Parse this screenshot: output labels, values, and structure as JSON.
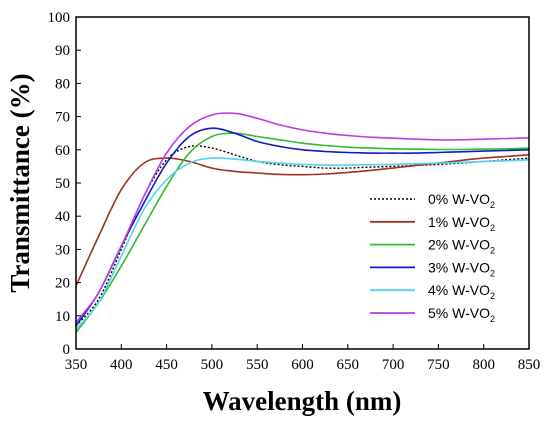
{
  "chart_data": {
    "type": "line",
    "title": "",
    "xlabel": "Wavelength (nm)",
    "ylabel": "Transmittance (%)",
    "xlim": [
      350,
      850
    ],
    "ylim": [
      0,
      100
    ],
    "xticks": [
      350,
      400,
      450,
      500,
      550,
      600,
      650,
      700,
      750,
      800,
      850
    ],
    "yticks": [
      0,
      10,
      20,
      30,
      40,
      50,
      60,
      70,
      80,
      90,
      100
    ],
    "grid": false,
    "legend_position": "right",
    "x": [
      350,
      375,
      400,
      425,
      450,
      475,
      500,
      525,
      550,
      575,
      600,
      625,
      650,
      675,
      700,
      725,
      750,
      775,
      800,
      825,
      850
    ],
    "series": [
      {
        "name": "0% W-VO",
        "sub": "2",
        "color": "#000000",
        "dash": "dotted",
        "values": [
          7,
          15,
          30,
          46,
          57,
          61,
          60.5,
          58.5,
          56.5,
          55.5,
          55,
          54.5,
          54.5,
          54.8,
          55,
          55.3,
          55.6,
          56,
          56.5,
          57,
          57.5
        ]
      },
      {
        "name": "1% W-VO",
        "sub": "2",
        "color": "#a0321e",
        "dash": "solid",
        "values": [
          19,
          34,
          48,
          56,
          57.5,
          56.5,
          54.5,
          53.5,
          53,
          52.6,
          52.5,
          52.7,
          53.2,
          53.8,
          54.5,
          55.3,
          56,
          56.8,
          57.5,
          58,
          58.5
        ]
      },
      {
        "name": "2% W-VO",
        "sub": "2",
        "color": "#2ebd2e",
        "dash": "solid",
        "values": [
          5,
          14,
          25,
          37,
          49,
          59,
          64,
          65,
          64,
          63,
          62,
          61.3,
          60.8,
          60.5,
          60.3,
          60.2,
          60.1,
          60.1,
          60.2,
          60.3,
          60.5
        ]
      },
      {
        "name": "3% W-VO",
        "sub": "2",
        "color": "#1018c8",
        "dash": "solid",
        "values": [
          7,
          17,
          31,
          44,
          56,
          64,
          66.5,
          65,
          62.5,
          61,
          60,
          59.5,
          59.2,
          59,
          59,
          59,
          59.2,
          59.4,
          59.6,
          59.8,
          60
        ]
      },
      {
        "name": "4% W-VO",
        "sub": "2",
        "color": "#55d2f2",
        "dash": "solid",
        "values": [
          6,
          14,
          28,
          42,
          51,
          56,
          57.5,
          57.2,
          56.5,
          56,
          55.6,
          55.4,
          55.4,
          55.5,
          55.6,
          55.8,
          56,
          56.2,
          56.5,
          56.7,
          57
        ]
      },
      {
        "name": "5% W-VO",
        "sub": "2",
        "color": "#b93ce6",
        "dash": "solid",
        "values": [
          8,
          17,
          31,
          46,
          59,
          67,
          70.5,
          71,
          69.5,
          67.5,
          66,
          65,
          64.3,
          63.8,
          63.5,
          63.2,
          63,
          63,
          63.2,
          63.4,
          63.6
        ]
      }
    ]
  }
}
